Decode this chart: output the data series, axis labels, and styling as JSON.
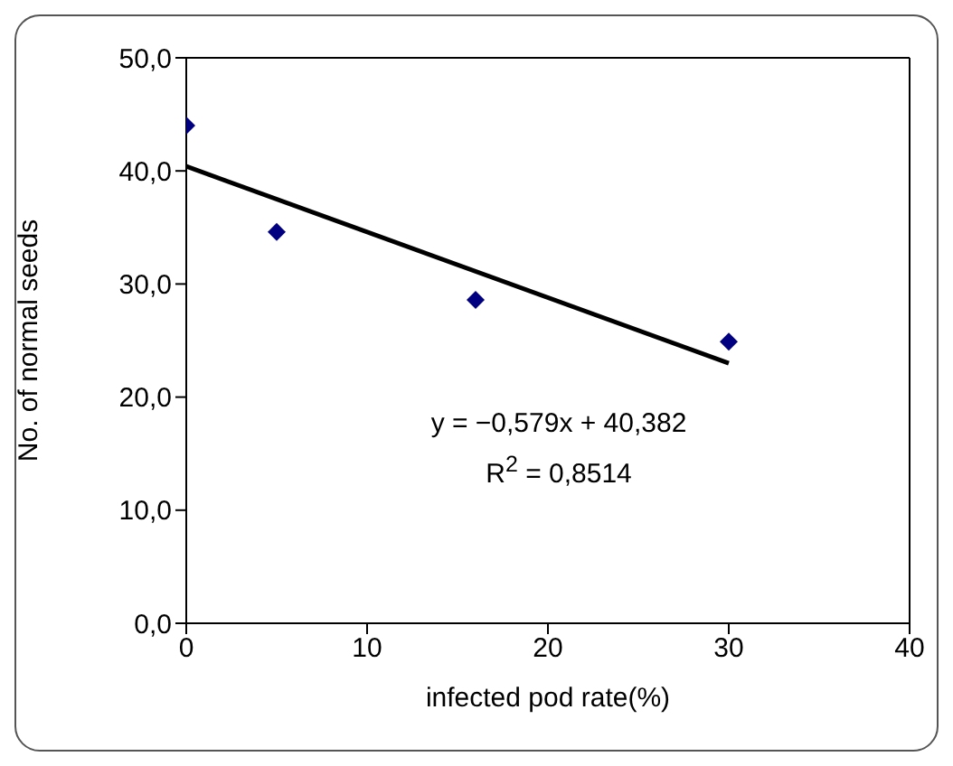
{
  "chart_data": {
    "type": "scatter",
    "xlabel": "infected pod rate(%)",
    "ylabel": "No. of normal seeds",
    "x": [
      0,
      5,
      16,
      30
    ],
    "series": [
      {
        "color": "#000080",
        "values": [
          44.0,
          34.6,
          28.6,
          24.9
        ],
        "marker": "diamond"
      },
      {
        "type": "line",
        "color": "#000000",
        "x": [
          0,
          30
        ],
        "values": [
          40.4,
          23.0
        ],
        "marker": "none",
        "line_style": "solid"
      }
    ],
    "xlim": [
      0,
      40
    ],
    "xticks": [
      0,
      10,
      20,
      30,
      40
    ],
    "ylim": [
      0,
      50
    ],
    "yticks": [
      {
        "value": 0,
        "label": "0,0"
      },
      {
        "value": 10,
        "label": "10,0"
      },
      {
        "value": 20,
        "label": "20,0"
      },
      {
        "value": 30,
        "label": "30,0"
      },
      {
        "value": 40,
        "label": "40,0"
      },
      {
        "value": 50,
        "label": "50,0"
      }
    ],
    "annotations": [
      "y = −0,579x + 40,382",
      "R$^{2}$ = 0,8514"
    ],
    "grid": false,
    "legend": false
  }
}
